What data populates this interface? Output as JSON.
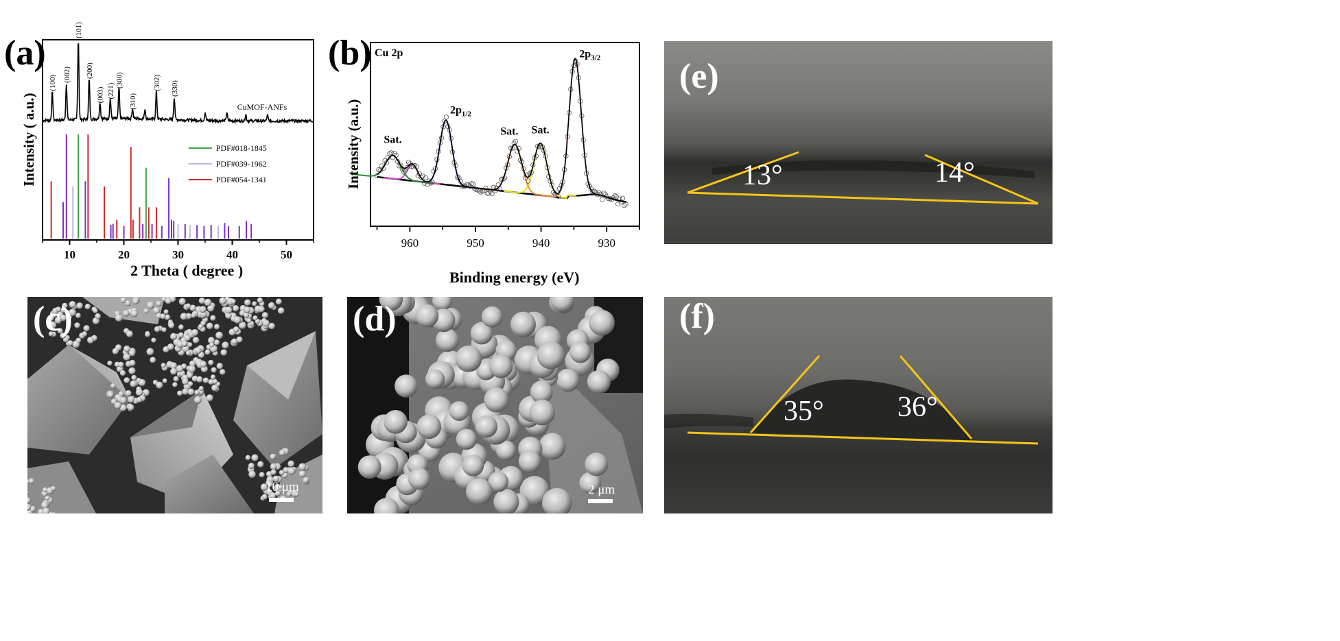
{
  "labels": {
    "a": "(a)",
    "b": "(b)",
    "c": "(c)",
    "d": "(d)",
    "e": "(e)",
    "f": "(f)"
  },
  "panel_e_angles": {
    "left": "13°",
    "right": "14°"
  },
  "panel_f_angles": {
    "left": "35°",
    "right": "36°"
  },
  "scalebars": {
    "c": "10 μm",
    "d": "2 μm"
  },
  "colors": {
    "pdf_018": "#3fa34a",
    "pdf_039": "#9b8fd0",
    "pdf_054": "#d62728",
    "purple": "#7b2fd1",
    "tangent": "#f5c518"
  },
  "chart_data": [
    {
      "type": "line",
      "panel": "a",
      "xlabel": "2 Theta ( degree )",
      "ylabel": "Intensity ( a.u.)",
      "xlim": [
        5,
        55
      ],
      "xticks": [
        10,
        20,
        30,
        40,
        50
      ],
      "series_label": "CuMOF-ANFs",
      "peak_labels": [
        {
          "x": 6.8,
          "label": "(100)"
        },
        {
          "x": 9.4,
          "label": "(002)"
        },
        {
          "x": 11.6,
          "label": "(101)"
        },
        {
          "x": 13.6,
          "label": "(200)"
        },
        {
          "x": 15.6,
          "label": "(003)"
        },
        {
          "x": 17.5,
          "label": "(221)"
        },
        {
          "x": 19.1,
          "label": "(300)"
        },
        {
          "x": 21.6,
          "label": "(310)"
        },
        {
          "x": 26.0,
          "label": "(302)"
        },
        {
          "x": 29.3,
          "label": "(330)"
        }
      ],
      "peaks": [
        [
          6.8,
          0.35
        ],
        [
          9.4,
          0.45
        ],
        [
          11.6,
          1.0
        ],
        [
          13.6,
          0.5
        ],
        [
          15.6,
          0.2
        ],
        [
          17.5,
          0.25
        ],
        [
          19.1,
          0.38
        ],
        [
          21.6,
          0.12
        ],
        [
          23.9,
          0.12
        ],
        [
          26.0,
          0.35
        ],
        [
          29.3,
          0.28
        ],
        [
          35.0,
          0.1
        ],
        [
          39.0,
          0.1
        ],
        [
          42.5,
          0.08
        ],
        [
          46.5,
          0.07
        ]
      ],
      "legend": [
        {
          "name": "PDF#018-1845",
          "color": "#3fa34a"
        },
        {
          "name": "PDF#039-1962",
          "color": "#b9b9e3"
        },
        {
          "name": "PDF#054-1341",
          "color": "#d62728"
        }
      ],
      "legend_position": "right",
      "reference_lines": [
        {
          "x": 6.6,
          "h": 0.55,
          "c": "#d62728"
        },
        {
          "x": 8.8,
          "h": 0.35,
          "c": "#7b2fd1"
        },
        {
          "x": 9.4,
          "h": 1.0,
          "c": "#7b2fd1"
        },
        {
          "x": 10.6,
          "h": 0.5,
          "c": "#b9b9e3"
        },
        {
          "x": 11.6,
          "h": 1.0,
          "c": "#3fa34a"
        },
        {
          "x": 12.9,
          "h": 0.55,
          "c": "#7b2fd1"
        },
        {
          "x": 13.4,
          "h": 1.0,
          "c": "#d62728"
        },
        {
          "x": 16.4,
          "h": 0.5,
          "c": "#d62728"
        },
        {
          "x": 17.6,
          "h": 0.13,
          "c": "#7b2fd1"
        },
        {
          "x": 18.0,
          "h": 0.14,
          "c": "#7b2fd1"
        },
        {
          "x": 18.7,
          "h": 0.18,
          "c": "#d62728"
        },
        {
          "x": 20.0,
          "h": 0.12,
          "c": "#7b2fd1"
        },
        {
          "x": 21.3,
          "h": 0.88,
          "c": "#d62728"
        },
        {
          "x": 21.7,
          "h": 0.18,
          "c": "#d62728"
        },
        {
          "x": 22.9,
          "h": 0.3,
          "c": "#d62728"
        },
        {
          "x": 23.5,
          "h": 0.14,
          "c": "#7b2fd1"
        },
        {
          "x": 24.1,
          "h": 0.68,
          "c": "#3fa34a"
        },
        {
          "x": 24.6,
          "h": 0.3,
          "c": "#d62728"
        },
        {
          "x": 25.2,
          "h": 0.14,
          "c": "#7b2fd1"
        },
        {
          "x": 26.0,
          "h": 0.3,
          "c": "#d62728"
        },
        {
          "x": 27.0,
          "h": 0.12,
          "c": "#7b2fd1"
        },
        {
          "x": 28.3,
          "h": 0.58,
          "c": "#7b2fd1"
        },
        {
          "x": 28.8,
          "h": 0.18,
          "c": "#d62728"
        },
        {
          "x": 29.2,
          "h": 0.17,
          "c": "#7b2fd1"
        },
        {
          "x": 30.0,
          "h": 0.14,
          "c": "#b9b9e3"
        },
        {
          "x": 31.3,
          "h": 0.14,
          "c": "#7b2fd1"
        },
        {
          "x": 32.2,
          "h": 0.13,
          "c": "#b9b9e3"
        },
        {
          "x": 33.5,
          "h": 0.13,
          "c": "#7b2fd1"
        },
        {
          "x": 34.8,
          "h": 0.12,
          "c": "#7b2fd1"
        },
        {
          "x": 36.1,
          "h": 0.13,
          "c": "#7b2fd1"
        },
        {
          "x": 37.4,
          "h": 0.12,
          "c": "#b9b9e3"
        },
        {
          "x": 38.6,
          "h": 0.15,
          "c": "#7b2fd1"
        },
        {
          "x": 39.3,
          "h": 0.12,
          "c": "#7b2fd1"
        },
        {
          "x": 41.3,
          "h": 0.12,
          "c": "#7b2fd1"
        },
        {
          "x": 42.6,
          "h": 0.17,
          "c": "#7b2fd1"
        },
        {
          "x": 43.5,
          "h": 0.14,
          "c": "#7b2fd1"
        }
      ]
    },
    {
      "type": "line",
      "panel": "b",
      "title": "Cu 2p",
      "xlabel": "Binding energy (eV)",
      "ylabel": "Intensity (a.u.)",
      "xlim": [
        966,
        925
      ],
      "xticks": [
        960,
        950,
        940,
        930
      ],
      "peaks": [
        {
          "name": "2p3/2",
          "center": 934.8,
          "height": 1.0,
          "width": 1.3,
          "color": "#e48fb0"
        },
        {
          "name": "Sat.",
          "center": 940.1,
          "height": 0.38,
          "width": 1.4,
          "color": "#e8df20"
        },
        {
          "name": "Sat.",
          "center": 944.0,
          "height": 0.35,
          "width": 1.5,
          "color": "#f28a2e"
        },
        {
          "name": "2p1/2",
          "center": 954.5,
          "height": 0.47,
          "width": 1.3,
          "color": "#7b2fd1"
        },
        {
          "name": "Sat.",
          "center": 959.6,
          "height": 0.12,
          "width": 1.1,
          "color": "#d44fd0"
        },
        {
          "name": "Sat.",
          "center": 962.6,
          "height": 0.17,
          "width": 1.6,
          "color": "#2e8b2e"
        }
      ],
      "annotations": [
        {
          "x": 962.6,
          "label": "Sat."
        },
        {
          "x": 944.0,
          "label": "Sat."
        },
        {
          "x": 940.1,
          "label": "Sat."
        },
        {
          "x": 954.5,
          "label": "2p1/2"
        },
        {
          "x": 934.8,
          "label": "2p3/2"
        }
      ]
    }
  ]
}
